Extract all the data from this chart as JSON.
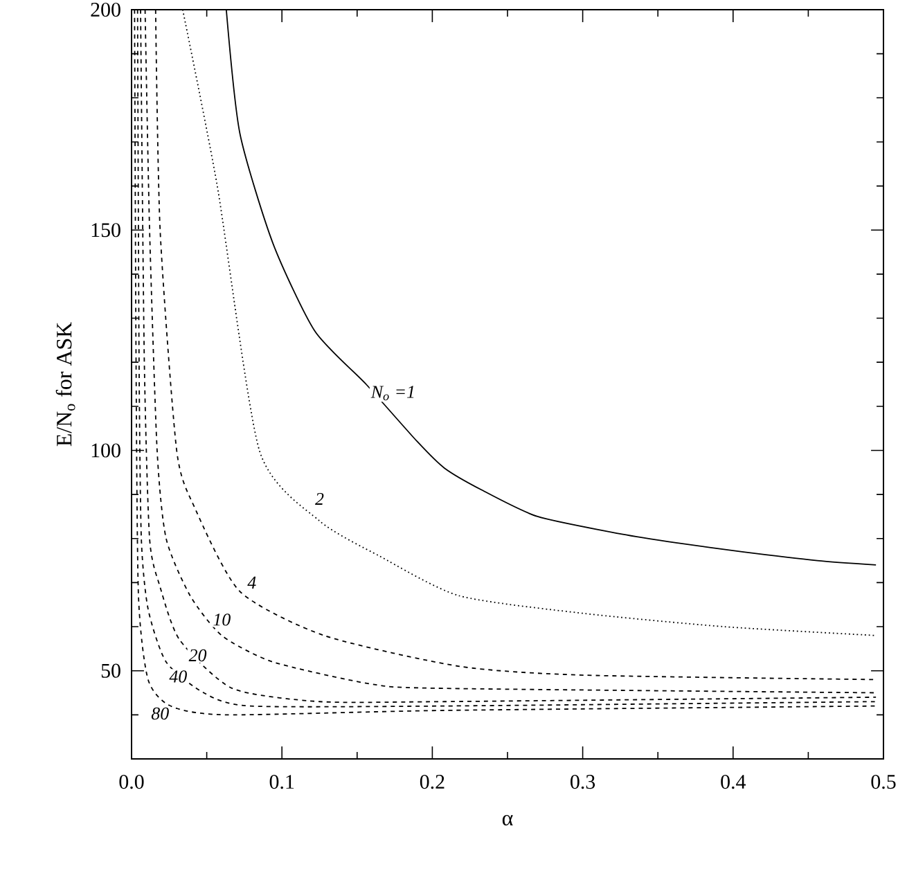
{
  "chart_data": {
    "type": "line",
    "xlabel": "α",
    "ylabel": "E/N$_{o}$ for ASK",
    "marker": "none",
    "xlim": [
      0,
      0.5
    ],
    "ylim": [
      30,
      200
    ],
    "xticks": [
      {
        "value": 0,
        "label": "0.0"
      },
      {
        "value": 0.05,
        "label": null
      },
      0.1,
      {
        "value": 0.15,
        "label": null
      },
      0.2,
      {
        "value": 0.25,
        "label": null
      },
      0.3,
      {
        "value": 0.35,
        "label": null
      },
      0.4,
      {
        "value": 0.45,
        "label": null
      },
      0.5
    ],
    "yticks": [
      {
        "value": 40,
        "label": null
      },
      50,
      {
        "value": 60,
        "label": null
      },
      {
        "value": 70,
        "label": null
      },
      {
        "value": 80,
        "label": null
      },
      {
        "value": 90,
        "label": null
      },
      100,
      {
        "value": 110,
        "label": null
      },
      {
        "value": 120,
        "label": null
      },
      {
        "value": 130,
        "label": null
      },
      {
        "value": 140,
        "label": null
      },
      150,
      {
        "value": 160,
        "label": null
      },
      {
        "value": 170,
        "label": null
      },
      {
        "value": 180,
        "label": null
      },
      {
        "value": 190,
        "label": null
      },
      200
    ],
    "series": [
      {
        "color": "#000000",
        "line_style": "solid",
        "x": [
          0.063,
          0.072,
          0.094,
          0.122,
          0.156,
          0.19,
          0.208,
          0.233,
          0.27,
          0.326,
          0.363,
          0.406,
          0.456,
          0.495
        ],
        "values": [
          200,
          172,
          147,
          127,
          115,
          102,
          96,
          91,
          85,
          81,
          79,
          77,
          75,
          74
        ]
      },
      {
        "color": "#000000",
        "line_style": "dotted",
        "x": [
          0.034,
          0.057,
          0.085,
          0.125,
          0.165,
          0.218,
          0.301,
          0.394,
          0.495
        ],
        "values": [
          200,
          160,
          100,
          84,
          76,
          67,
          63,
          60,
          58
        ]
      },
      {
        "color": "#000000",
        "line_style": "dashed",
        "x": [
          0.016,
          0.019,
          0.03,
          0.042,
          0.072,
          0.128,
          0.218,
          0.301,
          0.495
        ],
        "values": [
          200,
          150,
          100,
          87,
          68,
          58,
          51,
          49,
          48
        ]
      },
      {
        "color": "#000000",
        "line_style": "dashed",
        "x": [
          0.009,
          0.012,
          0.017,
          0.023,
          0.039,
          0.06,
          0.094,
          0.159,
          0.208,
          0.495
        ],
        "values": [
          200,
          150,
          100,
          80,
          67,
          58,
          52,
          47,
          46,
          45
        ]
      },
      {
        "color": "#000000",
        "line_style": "dashed",
        "x": [
          0.006,
          0.0085,
          0.012,
          0.019,
          0.032,
          0.067,
          0.125,
          0.208,
          0.495
        ],
        "values": [
          200,
          120,
          80,
          69,
          57,
          46,
          43,
          43,
          44
        ]
      },
      {
        "color": "#000000",
        "line_style": "dashed",
        "x": [
          0.004,
          0.005,
          0.0065,
          0.011,
          0.023,
          0.048,
          0.079,
          0.208,
          0.495
        ],
        "values": [
          200,
          120,
          80,
          64,
          52,
          45,
          42,
          42,
          43
        ]
      },
      {
        "color": "#000000",
        "line_style": "dashed",
        "x": [
          0.002,
          0.003,
          0.0046,
          0.011,
          0.026,
          0.063,
          0.208,
          0.495
        ],
        "values": [
          200,
          120,
          67,
          48,
          42,
          40,
          41,
          42
        ]
      }
    ],
    "annotations": [
      {
        "text": "N$_{o}$ =1",
        "x": 0.174,
        "y": 113
      },
      {
        "text": "2",
        "x": 0.125,
        "y": 89
      },
      {
        "text": "4",
        "x": 0.08,
        "y": 70
      },
      {
        "text": "10",
        "x": 0.06,
        "y": 61.6
      },
      {
        "text": "20",
        "x": 0.044,
        "y": 53.5
      },
      {
        "text": "40",
        "x": 0.031,
        "y": 48.7
      },
      {
        "text": "80",
        "x": 0.019,
        "y": 40.3
      }
    ]
  }
}
